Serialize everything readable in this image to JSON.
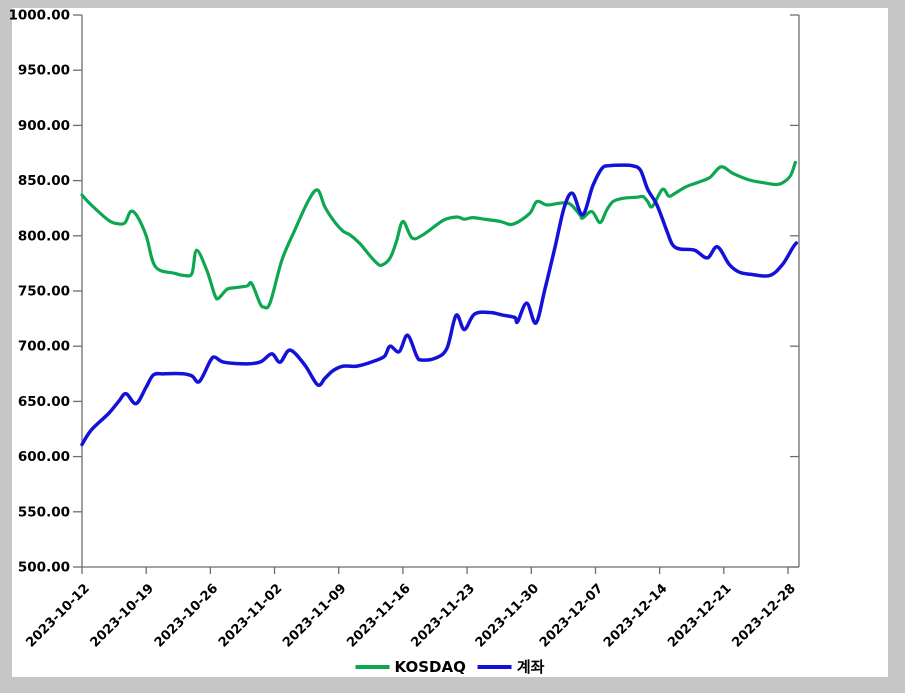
{
  "page": {
    "background_color": "#c6c6c6",
    "panel_color": "#ffffff",
    "axis_color": "#6e6e6e",
    "text_color": "#000000"
  },
  "legend": {
    "kosdaq_label": "KOSDAQ",
    "account_label": "계좌"
  },
  "chart_data": {
    "type": "line",
    "title": "",
    "xlabel": "",
    "ylabel": "",
    "grid": false,
    "legend_position": "bottom-center",
    "ylim": [
      500,
      1000
    ],
    "y_axis": {
      "min": 500,
      "max": 1000,
      "step": 50,
      "label_format": "0.00"
    },
    "right_axis_tick_values": [
      500,
      600,
      700,
      800,
      900,
      1000
    ],
    "x_axis": {
      "tick_labels": [
        "2023-10-12",
        "2023-10-19",
        "2023-10-26",
        "2023-11-02",
        "2023-11-09",
        "2023-11-16",
        "2023-11-23",
        "2023-11-30",
        "2023-12-07",
        "2023-12-14",
        "2023-12-21",
        "2023-12-28"
      ],
      "tick_day_offsets": [
        0,
        7,
        14,
        21,
        28,
        35,
        42,
        49,
        56,
        63,
        70,
        77
      ],
      "start_date": "2023-10-12",
      "units": "days since 2023-10-12"
    },
    "series": [
      {
        "name": "KOSDAQ",
        "color": "#0ca750",
        "line_width": 3.2,
        "points": [
          [
            0,
            837
          ],
          [
            1,
            828
          ],
          [
            2.9,
            814
          ],
          [
            3.9,
            811
          ],
          [
            4.7,
            812
          ],
          [
            5.3,
            822
          ],
          [
            6,
            818
          ],
          [
            7,
            800
          ],
          [
            8,
            772
          ],
          [
            10.1,
            766
          ],
          [
            11.2,
            764
          ],
          [
            12,
            766
          ],
          [
            12.5,
            787
          ],
          [
            13.6,
            769
          ],
          [
            14.5,
            746
          ],
          [
            14.9,
            743.5
          ],
          [
            15.8,
            751.5
          ],
          [
            16.7,
            753
          ],
          [
            18,
            754.5
          ],
          [
            18.5,
            757
          ],
          [
            19.4,
            739
          ],
          [
            19.8,
            735.5
          ],
          [
            20.5,
            739
          ],
          [
            21.8,
            778
          ],
          [
            23.2,
            805
          ],
          [
            24.7,
            832
          ],
          [
            25.7,
            841.5
          ],
          [
            26.5,
            826
          ],
          [
            27.6,
            812
          ],
          [
            28.5,
            804
          ],
          [
            29.2,
            801
          ],
          [
            30.3,
            793
          ],
          [
            31.4,
            782
          ],
          [
            32.2,
            775
          ],
          [
            32.7,
            773.5
          ],
          [
            33.6,
            780
          ],
          [
            34.3,
            795
          ],
          [
            35,
            813
          ],
          [
            36,
            798
          ],
          [
            37.2,
            801
          ],
          [
            39.4,
            814
          ],
          [
            40.9,
            817
          ],
          [
            41.7,
            815
          ],
          [
            42.6,
            816.5
          ],
          [
            43.9,
            815
          ],
          [
            45.6,
            813
          ],
          [
            47,
            810.5
          ],
          [
            48.8,
            820
          ],
          [
            49.6,
            831
          ],
          [
            50.7,
            828
          ],
          [
            52.1,
            829.5
          ],
          [
            53.2,
            829
          ],
          [
            54.3,
            819
          ],
          [
            54.6,
            816
          ],
          [
            55.6,
            822
          ],
          [
            56.5,
            812
          ],
          [
            57.2,
            823
          ],
          [
            57.9,
            831
          ],
          [
            59,
            834
          ],
          [
            60.5,
            835
          ],
          [
            61.2,
            835.5
          ],
          [
            61.7,
            831
          ],
          [
            62.2,
            826.5
          ],
          [
            63.3,
            842
          ],
          [
            64,
            836
          ],
          [
            64.6,
            838
          ],
          [
            65.9,
            844.5
          ],
          [
            67.4,
            849
          ],
          [
            68.5,
            853
          ],
          [
            69.7,
            862.5
          ],
          [
            71,
            856.5
          ],
          [
            72.8,
            850.5
          ],
          [
            74.4,
            848
          ],
          [
            75.8,
            846.5
          ],
          [
            76.6,
            849
          ],
          [
            77.3,
            855
          ],
          [
            77.8,
            866.5
          ]
        ]
      },
      {
        "name": "계좌",
        "color": "#1412d8",
        "line_width": 3.5,
        "points": [
          [
            0,
            611
          ],
          [
            1,
            624
          ],
          [
            2.9,
            639
          ],
          [
            4,
            650
          ],
          [
            4.8,
            657
          ],
          [
            5.9,
            648
          ],
          [
            7,
            663
          ],
          [
            7.8,
            674
          ],
          [
            9,
            675
          ],
          [
            11,
            675
          ],
          [
            12,
            673
          ],
          [
            12.8,
            668
          ],
          [
            14,
            687
          ],
          [
            14.5,
            690
          ],
          [
            15.5,
            685.5
          ],
          [
            18,
            684
          ],
          [
            19.5,
            686
          ],
          [
            20.7,
            693
          ],
          [
            21.6,
            685.5
          ],
          [
            22.7,
            696.5
          ],
          [
            24.3,
            683
          ],
          [
            25.7,
            665
          ],
          [
            26.5,
            671
          ],
          [
            27.4,
            678
          ],
          [
            28.5,
            682
          ],
          [
            30,
            682
          ],
          [
            32,
            687
          ],
          [
            33,
            691
          ],
          [
            33.6,
            700
          ],
          [
            34.6,
            695
          ],
          [
            35.5,
            710
          ],
          [
            36.5,
            691
          ],
          [
            37,
            687.5
          ],
          [
            38.5,
            689
          ],
          [
            39.8,
            698
          ],
          [
            40.8,
            728
          ],
          [
            41.7,
            715
          ],
          [
            42.8,
            729
          ],
          [
            44.5,
            730.5
          ],
          [
            46,
            728
          ],
          [
            47.2,
            726
          ],
          [
            47.5,
            722
          ],
          [
            48.5,
            739
          ],
          [
            49.5,
            721
          ],
          [
            50.5,
            752
          ],
          [
            51.6,
            790
          ],
          [
            52.6,
            826
          ],
          [
            53.5,
            838.5
          ],
          [
            54.6,
            819
          ],
          [
            55.7,
            845
          ],
          [
            56.7,
            861
          ],
          [
            57.5,
            863.5
          ],
          [
            59,
            864
          ],
          [
            60,
            863.5
          ],
          [
            60.9,
            859.5
          ],
          [
            61.7,
            842
          ],
          [
            62.7,
            828
          ],
          [
            63.8,
            804
          ],
          [
            64.4,
            792
          ],
          [
            65.2,
            788
          ],
          [
            66.8,
            787
          ],
          [
            68.2,
            780
          ],
          [
            69.3,
            790
          ],
          [
            70.6,
            774
          ],
          [
            71.7,
            767
          ],
          [
            73,
            765
          ],
          [
            75,
            764
          ],
          [
            76.4,
            774
          ],
          [
            77.5,
            789
          ],
          [
            77.9,
            793.5
          ]
        ]
      }
    ]
  }
}
